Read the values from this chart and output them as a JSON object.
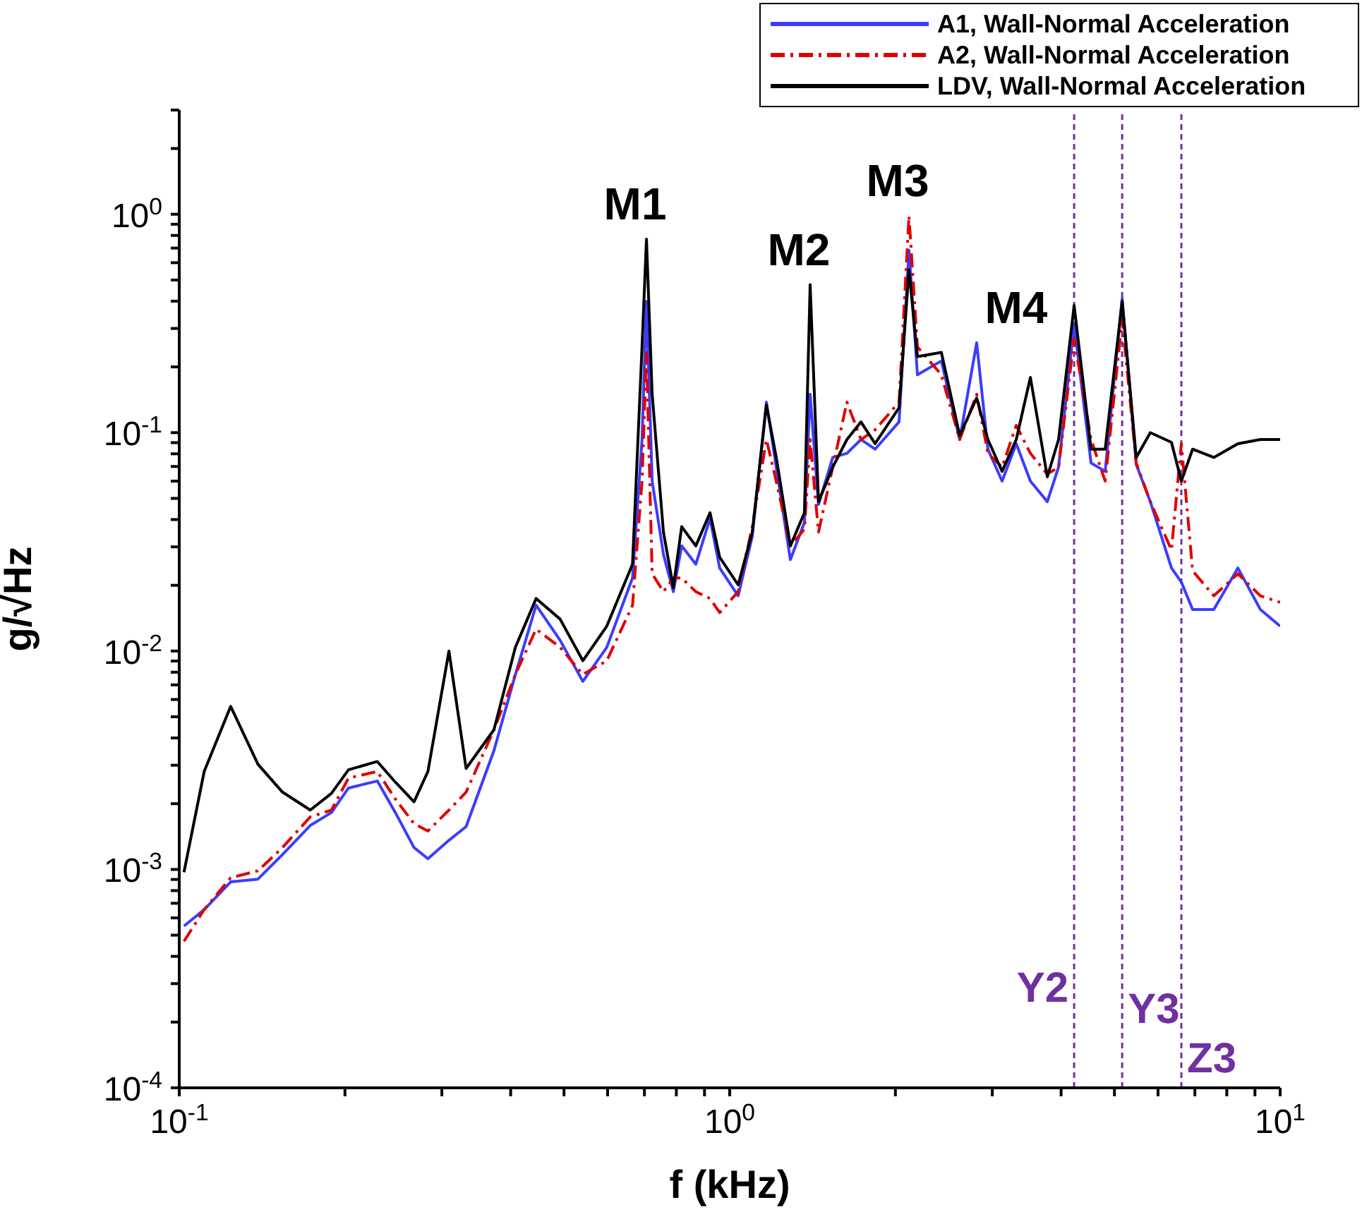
{
  "chart_data": {
    "type": "line",
    "log": "xy",
    "xlabel": "f (kHz)",
    "ylabel": "g/√Hz",
    "legend": "top right",
    "grid": false,
    "xlim": [
      0.1,
      10
    ],
    "xticks": [
      {
        "value": 0.1,
        "label": "10$^{-1}$"
      },
      {
        "value": 0.2,
        "label": null
      },
      {
        "value": 0.3,
        "label": null
      },
      {
        "value": 0.4,
        "label": null
      },
      {
        "value": 0.5,
        "label": null
      },
      {
        "value": 0.6,
        "label": null
      },
      {
        "value": 0.7,
        "label": null
      },
      {
        "value": 0.8,
        "label": null
      },
      {
        "value": 0.9,
        "label": null
      },
      {
        "value": 1,
        "label": "10$^{0}$"
      },
      {
        "value": 2,
        "label": null
      },
      {
        "value": 3,
        "label": null
      },
      {
        "value": 4,
        "label": null
      },
      {
        "value": 5,
        "label": null
      },
      {
        "value": 6,
        "label": null
      },
      {
        "value": 7,
        "label": null
      },
      {
        "value": 8,
        "label": null
      },
      {
        "value": 9,
        "label": null
      },
      {
        "value": 10,
        "label": "10$^{1}$"
      }
    ],
    "ylim": [
      0.0001,
      3
    ],
    "yticks": [
      {
        "value": 0.0001,
        "label": "10$^{-4}$"
      },
      {
        "value": 0.0002,
        "label": null
      },
      {
        "value": 0.0003,
        "label": null
      },
      {
        "value": 0.0004,
        "label": null
      },
      {
        "value": 0.0005,
        "label": null
      },
      {
        "value": 0.0006,
        "label": null
      },
      {
        "value": 0.0007,
        "label": null
      },
      {
        "value": 0.0008,
        "label": null
      },
      {
        "value": 0.0009,
        "label": null
      },
      {
        "value": 0.001,
        "label": "10$^{-3}$"
      },
      {
        "value": 0.002,
        "label": null
      },
      {
        "value": 0.003,
        "label": null
      },
      {
        "value": 0.004,
        "label": null
      },
      {
        "value": 0.005,
        "label": null
      },
      {
        "value": 0.006,
        "label": null
      },
      {
        "value": 0.007,
        "label": null
      },
      {
        "value": 0.008,
        "label": null
      },
      {
        "value": 0.009,
        "label": null
      },
      {
        "value": 0.01,
        "label": "10$^{-2}$"
      },
      {
        "value": 0.02,
        "label": null
      },
      {
        "value": 0.03,
        "label": null
      },
      {
        "value": 0.04,
        "label": null
      },
      {
        "value": 0.05,
        "label": null
      },
      {
        "value": 0.06,
        "label": null
      },
      {
        "value": 0.07,
        "label": null
      },
      {
        "value": 0.08,
        "label": null
      },
      {
        "value": 0.09,
        "label": null
      },
      {
        "value": 0.1,
        "label": "10$^{-1}$"
      },
      {
        "value": 0.2,
        "label": null
      },
      {
        "value": 0.3,
        "label": null
      },
      {
        "value": 0.4,
        "label": null
      },
      {
        "value": 0.5,
        "label": null
      },
      {
        "value": 0.6,
        "label": null
      },
      {
        "value": 0.7,
        "label": null
      },
      {
        "value": 0.8,
        "label": null
      },
      {
        "value": 0.9,
        "label": null
      },
      {
        "value": 1,
        "label": "10$^{0}$"
      },
      {
        "value": 2,
        "label": null
      },
      {
        "value": 3,
        "label": null
      }
    ],
    "x": [
      0.102,
      0.111,
      0.124,
      0.139,
      0.154,
      0.173,
      0.189,
      0.203,
      0.229,
      0.247,
      0.267,
      0.283,
      0.309,
      0.332,
      0.373,
      0.408,
      0.445,
      0.492,
      0.541,
      0.598,
      0.666,
      0.693,
      0.706,
      0.723,
      0.758,
      0.79,
      0.818,
      0.868,
      0.921,
      0.959,
      1.036,
      1.099,
      1.166,
      1.215,
      1.289,
      1.367,
      1.4,
      1.45,
      1.539,
      1.633,
      1.732,
      1.837,
      2.031,
      2.117,
      2.193,
      2.424,
      2.617,
      2.81,
      2.945,
      3.125,
      3.316,
      3.518,
      3.776,
      3.958,
      4.224,
      4.534,
      4.81,
      5.164,
      5.477,
      5.81,
      6.347,
      6.615,
      6.934,
      7.577,
      8.379,
      9.207,
      10
    ],
    "series": [
      {
        "name": "A1, Wall-Normal Acceleration",
        "color": "#3c3cff",
        "line_style": "solid",
        "values": [
          0.00055,
          0.000655,
          0.000877,
          0.000903,
          0.00117,
          0.00159,
          0.00182,
          0.00236,
          0.00254,
          0.00182,
          0.00126,
          0.00112,
          0.00136,
          0.00157,
          0.0035,
          0.00781,
          0.0162,
          0.0112,
          0.00726,
          0.0104,
          0.0216,
          0.093,
          0.399,
          0.06,
          0.0277,
          0.0187,
          0.0303,
          0.025,
          0.0405,
          0.024,
          0.0179,
          0.0335,
          0.138,
          0.0695,
          0.0262,
          0.0388,
          0.15,
          0.0469,
          0.077,
          0.0804,
          0.093,
          0.084,
          0.112,
          0.684,
          0.184,
          0.213,
          0.093,
          0.258,
          0.084,
          0.06,
          0.089,
          0.06,
          0.0483,
          0.0695,
          0.312,
          0.0726,
          0.0665,
          0.411,
          0.0715,
          0.0483,
          0.024,
          0.0207,
          0.0155,
          0.0155,
          0.024,
          0.0155,
          0.013
        ]
      },
      {
        "name": "A2, Wall-Normal Acceleration",
        "color": "#e00000",
        "line_style": "dashed",
        "values": [
          0.000469,
          0.000655,
          0.000916,
          0.000986,
          0.00126,
          0.00174,
          0.00187,
          0.00262,
          0.00281,
          0.0021,
          0.00162,
          0.0015,
          0.00187,
          0.00226,
          0.00436,
          0.00781,
          0.0126,
          0.0104,
          0.00781,
          0.00903,
          0.0162,
          0.06,
          0.233,
          0.0226,
          0.0187,
          0.0216,
          0.0216,
          0.0187,
          0.0174,
          0.015,
          0.0187,
          0.0371,
          0.093,
          0.06,
          0.0303,
          0.0361,
          0.093,
          0.035,
          0.0695,
          0.138,
          0.093,
          0.103,
          0.138,
          0.985,
          0.247,
          0.184,
          0.093,
          0.15,
          0.0804,
          0.0695,
          0.108,
          0.0804,
          0.0646,
          0.0695,
          0.269,
          0.093,
          0.06,
          0.33,
          0.0726,
          0.0483,
          0.029,
          0.089,
          0.0233,
          0.0179,
          0.0226,
          0.0179,
          0.0167
        ]
      },
      {
        "name": "LDV, Wall-Normal Acceleration",
        "color": "#000000",
        "line_style": "solid",
        "values": [
          0.000971,
          0.00281,
          0.00558,
          0.00303,
          0.00226,
          0.00187,
          0.00223,
          0.00286,
          0.00312,
          0.00251,
          0.00204,
          0.00281,
          0.01,
          0.0029,
          0.00436,
          0.0104,
          0.0174,
          0.014,
          0.00903,
          0.013,
          0.025,
          0.247,
          0.769,
          0.15,
          0.035,
          0.0195,
          0.0371,
          0.0303,
          0.043,
          0.0269,
          0.0201,
          0.035,
          0.134,
          0.077,
          0.0303,
          0.043,
          0.476,
          0.0483,
          0.0695,
          0.093,
          0.112,
          0.089,
          0.13,
          0.558,
          0.223,
          0.233,
          0.0971,
          0.144,
          0.093,
          0.0665,
          0.093,
          0.179,
          0.0627,
          0.093,
          0.382,
          0.084,
          0.084,
          0.399,
          0.077,
          0.1,
          0.0903,
          0.06,
          0.084,
          0.077,
          0.089,
          0.093,
          0.093
        ]
      }
    ],
    "ref_lines": [
      {
        "axis": "x",
        "value": 4.224,
        "label": "Y2",
        "color": "#7030a0",
        "line_style": "dashed"
      },
      {
        "axis": "x",
        "value": 5.164,
        "label": "Y3",
        "color": "#7030a0",
        "line_style": "dashed"
      },
      {
        "axis": "x",
        "value": 6.615,
        "label": "Z3",
        "color": "#7030a0",
        "line_style": "dashed"
      }
    ],
    "annotations": [
      {
        "text": "M1",
        "x": 0.706,
        "y": 0.769
      },
      {
        "text": "M2",
        "x": 1.4,
        "y": 0.476
      },
      {
        "text": "M3",
        "x": 2.117,
        "y": 0.985
      },
      {
        "text": "M4",
        "x": 2.81,
        "y": 0.258
      }
    ]
  }
}
